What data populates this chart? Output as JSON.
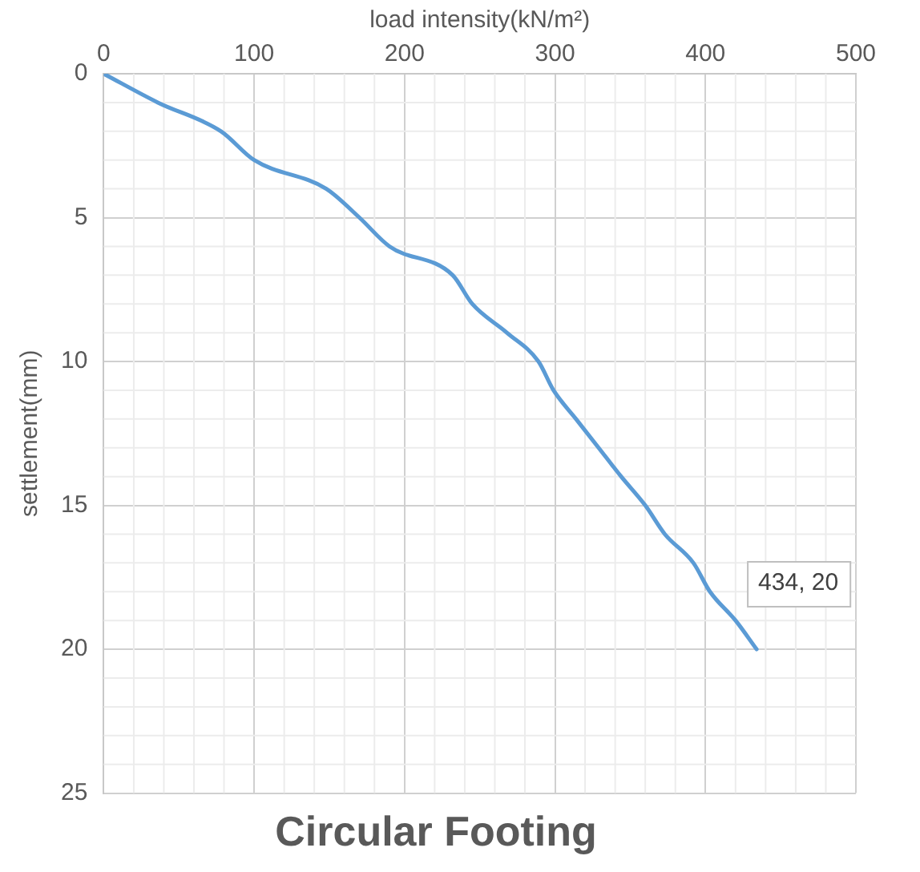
{
  "chart_data": {
    "type": "line",
    "title": "Circular Footing",
    "xlabel": "load intensity(kN/m²)",
    "ylabel": "settlement(mm)",
    "x": [
      0,
      36,
      78,
      100,
      148,
      170,
      190,
      232,
      245,
      268,
      289,
      299,
      314,
      329,
      344,
      360,
      373,
      392,
      403,
      420,
      434
    ],
    "series": [
      {
        "color": "#5b9bd5",
        "values": [
          0,
          1,
          2,
          3,
          4,
          5,
          6,
          7,
          8,
          9,
          10,
          11,
          12,
          13,
          14,
          15,
          16,
          17,
          18,
          19,
          20
        ]
      }
    ],
    "xlim": [
      0,
      500
    ],
    "xticks": [
      0,
      100,
      200,
      300,
      400,
      500
    ],
    "ylim": [
      25,
      0
    ],
    "yticks": [
      0,
      5,
      10,
      15,
      20,
      25
    ],
    "grid": true,
    "legend": false,
    "marker": "none",
    "line_style": "solid",
    "annotations": [
      {
        "text": "434, 20",
        "x": 434,
        "y": 20
      }
    ]
  }
}
